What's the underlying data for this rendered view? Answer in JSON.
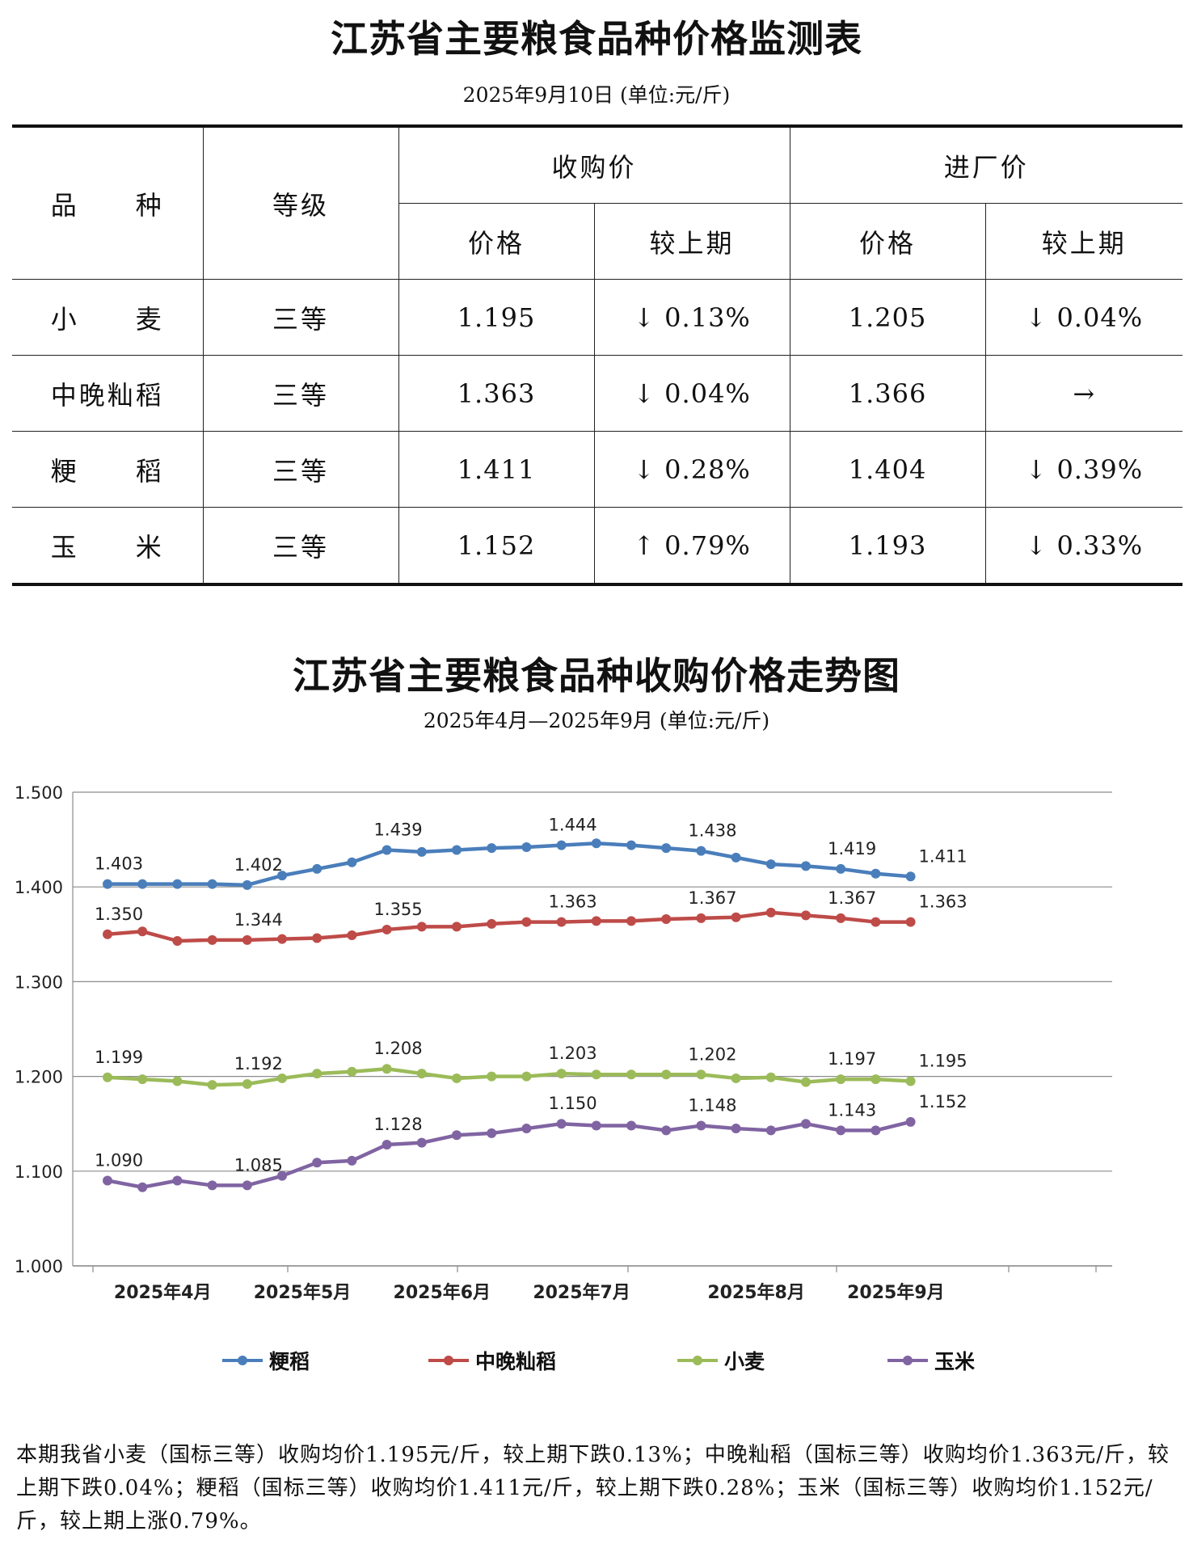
{
  "table_title": "江苏省主要粮食品种价格监测表",
  "table_subtitle": "2025年9月10日  (单位:元/斤)",
  "table": {
    "header": {
      "variety": "品　　种",
      "grade": "等级",
      "purchase_price": "收购价",
      "factory_price": "进厂价",
      "price": "价格",
      "vs_prev": "较上期"
    },
    "rows": [
      {
        "variety": "小　　麦",
        "grade": "三等",
        "purchase": "1.195",
        "purchase_chg": "↓ 0.13%",
        "factory": "1.205",
        "factory_chg": "↓ 0.04%"
      },
      {
        "variety": "中晚籼稻",
        "grade": "三等",
        "purchase": "1.363",
        "purchase_chg": "↓ 0.04%",
        "factory": "1.366",
        "factory_chg": "→"
      },
      {
        "variety": "粳　　稻",
        "grade": "三等",
        "purchase": "1.411",
        "purchase_chg": "↓ 0.28%",
        "factory": "1.404",
        "factory_chg": "↓ 0.39%"
      },
      {
        "variety": "玉　　米",
        "grade": "三等",
        "purchase": "1.152",
        "purchase_chg": "↑ 0.79%",
        "factory": "1.193",
        "factory_chg": "↓ 0.33%"
      }
    ]
  },
  "chart_title": "江苏省主要粮食品种收购价格走势图",
  "chart_subtitle": "2025年4月—2025年9月  (单位:元/斤)",
  "chart_data": {
    "type": "line",
    "ylim": [
      1.0,
      1.5
    ],
    "yticks": [
      "1.000",
      "1.100",
      "1.200",
      "1.300",
      "1.400",
      "1.500"
    ],
    "x_labels": [
      {
        "label": "2025年4月",
        "index": 1
      },
      {
        "label": "2025年5月",
        "index": 5
      },
      {
        "label": "2025年6月",
        "index": 9
      },
      {
        "label": "2025年7月",
        "index": 13
      },
      {
        "label": "2025年8月",
        "index": 18
      },
      {
        "label": "2025年9月",
        "index": 22
      }
    ],
    "grid": true,
    "legend_position": "bottom",
    "series": [
      {
        "name": "粳稻",
        "color": "#4a7ebb",
        "values": [
          1.403,
          1.403,
          1.403,
          1.403,
          1.402,
          1.412,
          1.419,
          1.426,
          1.439,
          1.437,
          1.439,
          1.441,
          1.442,
          1.444,
          1.446,
          1.444,
          1.441,
          1.438,
          1.431,
          1.424,
          1.422,
          1.419,
          1.414,
          1.411
        ],
        "labels": {
          "0": "1.403",
          "4": "1.402",
          "8": "1.439",
          "13": "1.444",
          "17": "1.438",
          "21": "1.419",
          "23": "1.411"
        }
      },
      {
        "name": "中晚籼稻",
        "color": "#be4b48",
        "values": [
          1.35,
          1.353,
          1.343,
          1.344,
          1.344,
          1.345,
          1.346,
          1.349,
          1.355,
          1.358,
          1.358,
          1.361,
          1.363,
          1.363,
          1.364,
          1.364,
          1.366,
          1.367,
          1.368,
          1.373,
          1.37,
          1.367,
          1.363,
          1.363
        ],
        "labels": {
          "0": "1.350",
          "4": "1.344",
          "8": "1.355",
          "13": "1.363",
          "17": "1.367",
          "21": "1.367",
          "23": "1.363"
        }
      },
      {
        "name": "小麦",
        "color": "#9bbb59",
        "values": [
          1.199,
          1.197,
          1.195,
          1.191,
          1.192,
          1.198,
          1.203,
          1.205,
          1.208,
          1.203,
          1.198,
          1.2,
          1.2,
          1.203,
          1.202,
          1.202,
          1.202,
          1.202,
          1.198,
          1.199,
          1.194,
          1.197,
          1.197,
          1.195
        ],
        "labels": {
          "0": "1.199",
          "4": "1.192",
          "8": "1.208",
          "13": "1.203",
          "17": "1.202",
          "21": "1.197",
          "23": "1.195"
        }
      },
      {
        "name": "玉米",
        "color": "#8064a2",
        "values": [
          1.09,
          1.083,
          1.09,
          1.085,
          1.085,
          1.095,
          1.109,
          1.111,
          1.128,
          1.13,
          1.138,
          1.14,
          1.145,
          1.15,
          1.148,
          1.148,
          1.143,
          1.148,
          1.145,
          1.143,
          1.15,
          1.143,
          1.143,
          1.152
        ],
        "labels": {
          "0": "1.090",
          "4": "1.085",
          "8": "1.128",
          "13": "1.150",
          "17": "1.148",
          "21": "1.143",
          "23": "1.152"
        }
      }
    ]
  },
  "summary": "本期我省小麦（国标三等）收购均价1.195元/斤，较上期下跌0.13%；中晚籼稻（国标三等）收购均价1.363元/斤，较上期下跌0.04%；粳稻（国标三等）收购均价1.411元/斤，较上期下跌0.28%；玉米（国标三等）收购均价1.152元/斤，较上期上涨0.79%。"
}
